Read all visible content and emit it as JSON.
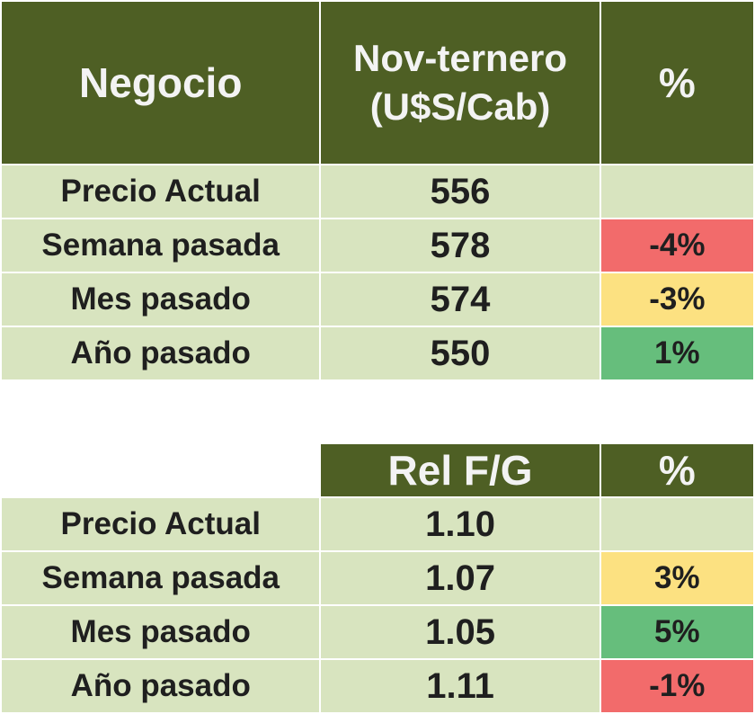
{
  "table1": {
    "headers": [
      "Negocio",
      "Nov-ternero\n(U$S/Cab)",
      "%"
    ],
    "rows": [
      {
        "label": "Precio Actual",
        "value": "556",
        "pct": "",
        "status": "none"
      },
      {
        "label": "Semana pasada",
        "value": "578",
        "pct": "-4%",
        "status": "neg"
      },
      {
        "label": "Mes pasado",
        "value": "574",
        "pct": "-3%",
        "status": "mid"
      },
      {
        "label": "Año pasado",
        "value": "550",
        "pct": "1%",
        "status": "pos"
      }
    ]
  },
  "table2": {
    "headers": [
      "",
      "Rel F/G",
      "%"
    ],
    "rows": [
      {
        "label": "Precio Actual",
        "value": "1.10",
        "pct": "",
        "status": "none"
      },
      {
        "label": "Semana pasada",
        "value": "1.07",
        "pct": "3%",
        "status": "mid"
      },
      {
        "label": "Mes pasado",
        "value": "1.05",
        "pct": "5%",
        "status": "pos"
      },
      {
        "label": "Año pasado",
        "value": "1.11",
        "pct": "-1%",
        "status": "neg"
      }
    ]
  },
  "colors": {
    "header_bg": "#4e5f24",
    "cell_bg": "#d8e4bf",
    "negative": "#f26b6b",
    "neutral": "#fce181",
    "positive": "#66be7c"
  }
}
